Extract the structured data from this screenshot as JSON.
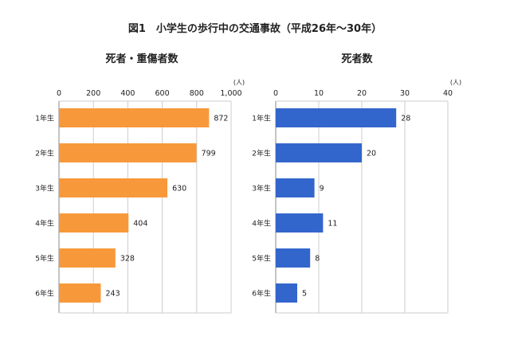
{
  "chart_data": [
    {
      "type": "bar",
      "orientation": "horizontal",
      "title": "死者・重傷者数",
      "unit": "(人)",
      "categories": [
        "1年生",
        "2年生",
        "3年生",
        "4年生",
        "5年生",
        "6年生"
      ],
      "values": [
        872,
        799,
        630,
        404,
        328,
        243
      ],
      "xlim": [
        0,
        1000
      ],
      "ticks": [
        0,
        200,
        400,
        600,
        800,
        1000
      ],
      "tick_labels": [
        "0",
        "200",
        "400",
        "600",
        "800",
        "1,000"
      ],
      "color": "#F7993A",
      "grid": true
    },
    {
      "type": "bar",
      "orientation": "horizontal",
      "title": "死者数",
      "unit": "(人)",
      "categories": [
        "1年生",
        "2年生",
        "3年生",
        "4年生",
        "5年生",
        "6年生"
      ],
      "values": [
        28,
        20,
        9,
        11,
        8,
        5
      ],
      "xlim": [
        0,
        40
      ],
      "ticks": [
        0,
        10,
        20,
        30,
        40
      ],
      "tick_labels": [
        "0",
        "10",
        "20",
        "30",
        "40"
      ],
      "color": "#3366CC",
      "grid": true
    }
  ],
  "figure_title": "図1　小学生の歩行中の交通事故（平成26年～30年）"
}
